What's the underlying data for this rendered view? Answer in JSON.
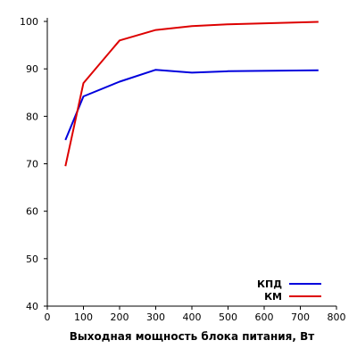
{
  "chart_data": {
    "type": "line",
    "title": "",
    "xlabel": "Выходная мощность блока питания, Вт",
    "ylabel": "",
    "xlim": [
      0,
      800
    ],
    "ylim": [
      40,
      100
    ],
    "xticks": [
      0,
      100,
      200,
      300,
      400,
      500,
      600,
      700,
      800
    ],
    "yticks": [
      40,
      50,
      60,
      70,
      80,
      90,
      100
    ],
    "grid": false,
    "legend_position": "bottom-right",
    "series": [
      {
        "name": "КПД",
        "color": "#0000dd",
        "x": [
          50,
          100,
          200,
          300,
          400,
          500,
          750
        ],
        "y": [
          75,
          84.2,
          87.3,
          89.8,
          89.2,
          89.5,
          89.7
        ]
      },
      {
        "name": "КМ",
        "color": "#dd0000",
        "x": [
          50,
          100,
          200,
          300,
          400,
          500,
          750
        ],
        "y": [
          69.5,
          87,
          96,
          98.2,
          99,
          99.4,
          99.9
        ]
      }
    ]
  }
}
